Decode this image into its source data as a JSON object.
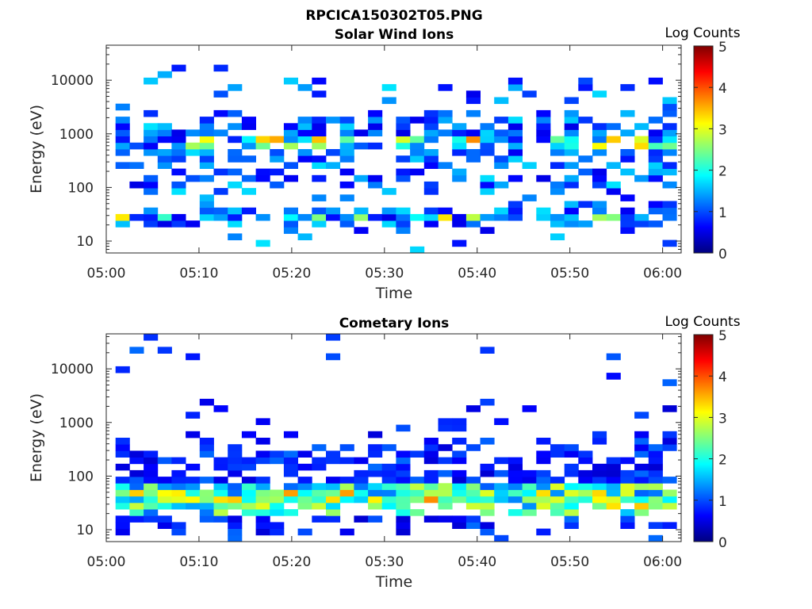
{
  "figure": {
    "title": "RPCICA150302T05.PNG"
  },
  "chart_data": [
    {
      "type": "heatmap",
      "title": "Solar Wind Ions",
      "xlabel": "Time",
      "ylabel": "Energy (eV)",
      "x_tick_labels": [
        "05:00",
        "05:10",
        "05:20",
        "05:30",
        "05:40",
        "05:50",
        "06:00"
      ],
      "x_ticks_minutes": [
        0,
        10,
        20,
        30,
        40,
        50,
        60
      ],
      "xlim_minutes": [
        0,
        62
      ],
      "y_scale": "log",
      "ylim": [
        6,
        45000
      ],
      "y_tick_values": [
        10,
        100,
        1000,
        10000
      ],
      "y_tick_labels": [
        "10",
        "100",
        "1000",
        "10000"
      ],
      "colorbar": {
        "label": "Log Counts",
        "range": [
          0,
          5
        ],
        "tick_labels": [
          "0",
          "1",
          "2",
          "3",
          "4",
          "5"
        ],
        "colormap": "jet"
      },
      "time_bins": 40,
      "energy_bins": 32,
      "emin_eV": 6,
      "emax_eV": 45000,
      "pattern": "solar_wind",
      "seed": 7
    },
    {
      "type": "heatmap",
      "title": "Cometary Ions",
      "xlabel": "Time",
      "ylabel": "Energy (eV)",
      "x_tick_labels": [
        "05:00",
        "05:10",
        "05:20",
        "05:30",
        "05:40",
        "05:50",
        "06:00"
      ],
      "x_ticks_minutes": [
        0,
        10,
        20,
        30,
        40,
        50,
        60
      ],
      "xlim_minutes": [
        0,
        62
      ],
      "y_scale": "log",
      "ylim": [
        6,
        45000
      ],
      "y_tick_values": [
        10,
        100,
        1000,
        10000
      ],
      "y_tick_labels": [
        "10",
        "100",
        "1000",
        "10000"
      ],
      "colorbar": {
        "label": "Log Counts",
        "range": [
          0,
          5
        ],
        "tick_labels": [
          "0",
          "1",
          "2",
          "3",
          "4",
          "5"
        ],
        "colormap": "jet"
      },
      "time_bins": 40,
      "energy_bins": 32,
      "emin_eV": 6,
      "emax_eV": 45000,
      "pattern": "cometary",
      "seed": 21
    }
  ]
}
